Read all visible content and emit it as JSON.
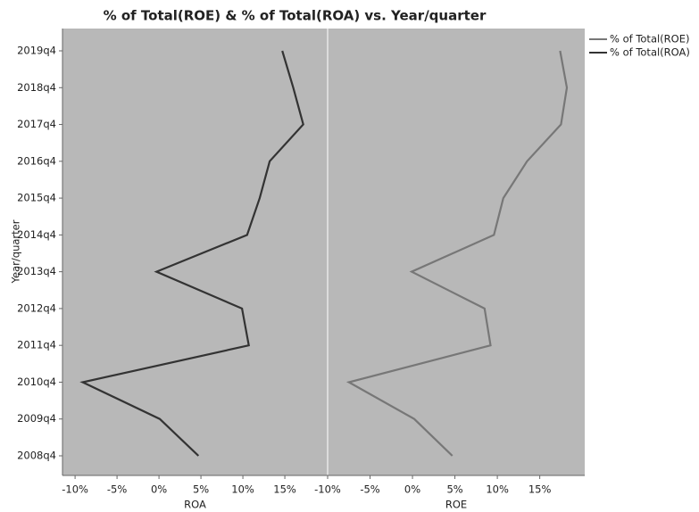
{
  "chart_data": {
    "type": "line",
    "title": "% of Total(ROE) & % of Total(ROA) vs. Year/quarter",
    "ylabel": "Year/quarter",
    "categories": [
      "2008q4",
      "2009q4",
      "2010q4",
      "2011q4",
      "2012q4",
      "2013q4",
      "2014q4",
      "2015q4",
      "2016q4",
      "2017q4",
      "2018q4",
      "2019q4"
    ],
    "series": [
      {
        "name": "% of Total(ROE)",
        "color": "#777777",
        "panel": 1,
        "values": [
          4.7,
          0.2,
          -7.5,
          9.2,
          8.5,
          -0.1,
          9.6,
          10.7,
          13.5,
          17.5,
          18.2,
          17.4
        ]
      },
      {
        "name": "% of Total(ROA)",
        "color": "#333333",
        "panel": 0,
        "values": [
          4.7,
          0.1,
          -9.1,
          10.7,
          9.9,
          -0.3,
          10.5,
          12.0,
          13.2,
          17.2,
          16.0,
          14.7
        ]
      }
    ],
    "panels": [
      {
        "xlabel": "ROA",
        "xlim": [
          -11.5,
          20.1
        ],
        "xticks": [
          {
            "value": -10,
            "label": "-10%"
          },
          {
            "value": -5,
            "label": "-5%"
          },
          {
            "value": 0,
            "label": "0%"
          },
          {
            "value": 5,
            "label": "5%"
          },
          {
            "value": 10,
            "label": "10%"
          },
          {
            "value": 15,
            "label": "15%"
          }
        ]
      },
      {
        "xlabel": "ROE",
        "xlim": [
          -10,
          20.3
        ],
        "xticks": [
          {
            "value": -10,
            "label": "-10%"
          },
          {
            "value": -5,
            "label": "-5%"
          },
          {
            "value": 0,
            "label": "0%"
          },
          {
            "value": 5,
            "label": "5%"
          },
          {
            "value": 10,
            "label": "10%"
          },
          {
            "value": 15,
            "label": "15%"
          }
        ]
      }
    ],
    "legend": "top-right"
  }
}
